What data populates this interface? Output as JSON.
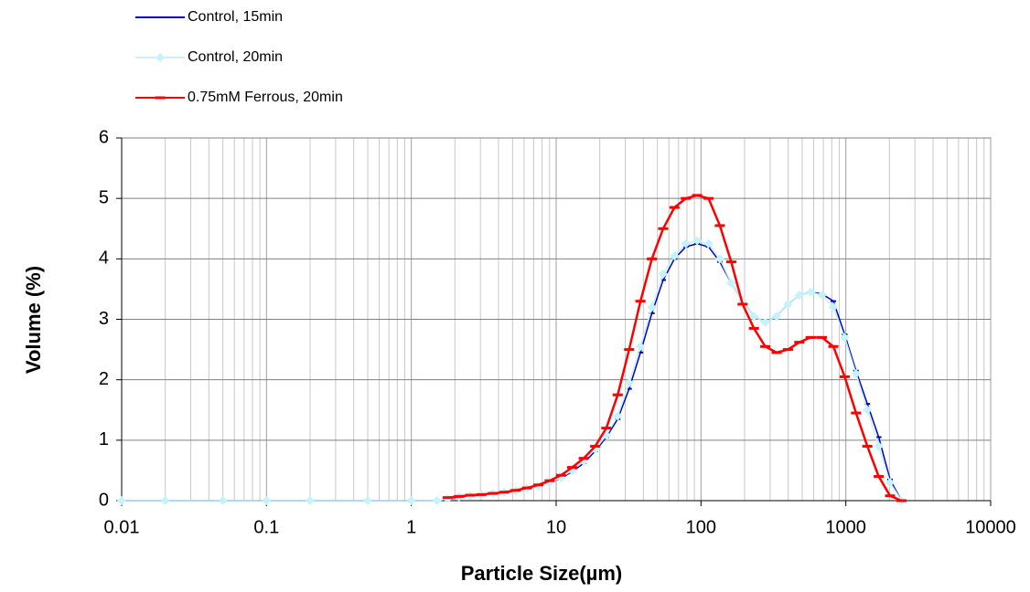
{
  "chart_data": {
    "type": "line",
    "xlabel": "Particle Size(µm)",
    "ylabel": "Volume (%)",
    "x": [
      0.01,
      0.02,
      0.05,
      0.1,
      0.2,
      0.5,
      1,
      1.5,
      1.78,
      2.13,
      2.55,
      3.05,
      3.66,
      4.38,
      5.25,
      6.29,
      7.53,
      9.02,
      10.8,
      12.9,
      15.5,
      18.6,
      22.2,
      26.6,
      31.9,
      38.2,
      45.8,
      54.8,
      65.6,
      78.6,
      94.1,
      112.7,
      135,
      161.7,
      193.7,
      232,
      277.8,
      332.7,
      398.5,
      477.3,
      571.7,
      684.6,
      820,
      982,
      1176,
      1408,
      1687,
      2020,
      2420
    ],
    "series": [
      {
        "name": "Control, 15min",
        "color": "#0000cc",
        "marker": "dash",
        "values": [
          0,
          0,
          0,
          0,
          0,
          0,
          0,
          0,
          0.02,
          0.05,
          0.08,
          0.1,
          0.12,
          0.14,
          0.16,
          0.2,
          0.24,
          0.3,
          0.37,
          0.48,
          0.62,
          0.82,
          1.05,
          1.35,
          1.85,
          2.45,
          3.1,
          3.65,
          4.0,
          4.2,
          4.25,
          4.2,
          3.95,
          3.6,
          3.3,
          3.05,
          2.95,
          3.05,
          3.25,
          3.4,
          3.45,
          3.42,
          3.3,
          2.75,
          2.15,
          1.6,
          1.05,
          0.35,
          0
        ]
      },
      {
        "name": "Control, 20min",
        "color": "#c4f4fa",
        "marker": "diamond",
        "values": [
          0,
          0,
          0,
          0,
          0,
          0,
          0,
          0,
          0.03,
          0.06,
          0.08,
          0.1,
          0.12,
          0.14,
          0.16,
          0.2,
          0.24,
          0.3,
          0.38,
          0.5,
          0.65,
          0.85,
          1.08,
          1.4,
          1.95,
          2.55,
          3.2,
          3.75,
          4.05,
          4.25,
          4.3,
          4.25,
          4.0,
          3.6,
          3.3,
          3.05,
          2.95,
          3.05,
          3.25,
          3.4,
          3.45,
          3.4,
          3.2,
          2.7,
          2.1,
          1.5,
          0.9,
          0.3,
          0
        ]
      },
      {
        "name": "0.75mM Ferrous, 20min",
        "color": "#ff0000",
        "marker": "dash",
        "values": [
          null,
          null,
          null,
          null,
          null,
          null,
          null,
          null,
          0.05,
          0.07,
          0.09,
          0.1,
          0.12,
          0.14,
          0.17,
          0.21,
          0.26,
          0.33,
          0.42,
          0.55,
          0.7,
          0.9,
          1.2,
          1.75,
          2.5,
          3.3,
          4.0,
          4.5,
          4.85,
          5.0,
          5.05,
          5.0,
          4.55,
          3.95,
          3.25,
          2.85,
          2.55,
          2.45,
          2.5,
          2.62,
          2.7,
          2.7,
          2.55,
          2.05,
          1.45,
          0.9,
          0.4,
          0.08,
          0
        ]
      }
    ],
    "xlog": true,
    "xlim": [
      0.01,
      10000
    ],
    "xticks": [
      0.01,
      0.1,
      1,
      10,
      100,
      1000,
      10000
    ],
    "ylim": [
      0,
      6
    ],
    "yticks": [
      0,
      1,
      2,
      3,
      4,
      5,
      6
    ],
    "grid": true,
    "minor_grid": true,
    "legend": "top-left"
  }
}
